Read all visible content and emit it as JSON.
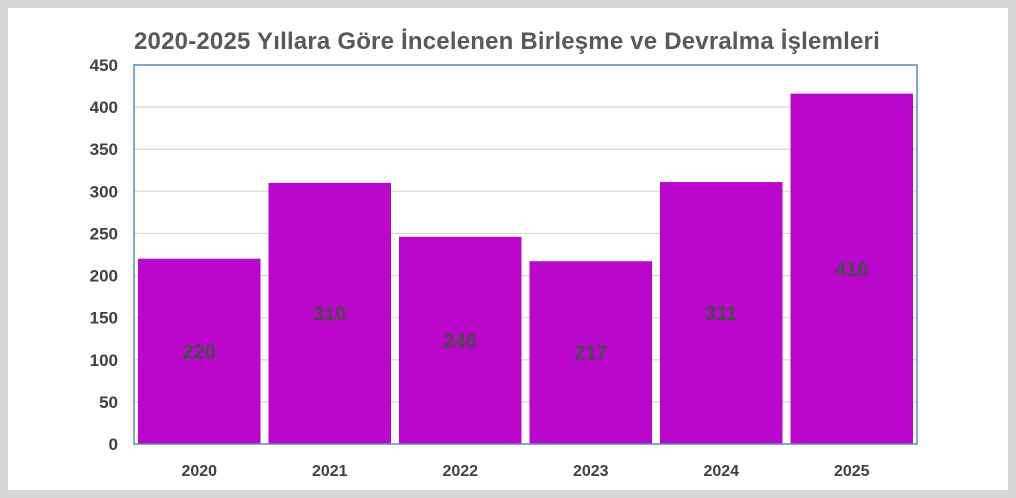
{
  "chart_data": {
    "type": "bar",
    "title": "2020-2025 Yıllara Göre İncelenen Birleşme ve Devralma İşlemleri",
    "categories": [
      "2020",
      "2021",
      "2022",
      "2023",
      "2024",
      "2025"
    ],
    "values": [
      220,
      310,
      246,
      217,
      311,
      416
    ],
    "data_labels": [
      "220",
      "310",
      "246",
      "217",
      "311",
      "416"
    ],
    "yticks": [
      "0",
      "50",
      "100",
      "150",
      "200",
      "250",
      "300",
      "350",
      "400",
      "450"
    ],
    "ylim": [
      0,
      450
    ],
    "grid": true,
    "xlabel": "",
    "ylabel": "",
    "colors": {
      "bar": "#bb06cc",
      "grid": "#d9d9d9",
      "axis": "#5b8bb5",
      "frame": "#d6d6d6"
    }
  }
}
